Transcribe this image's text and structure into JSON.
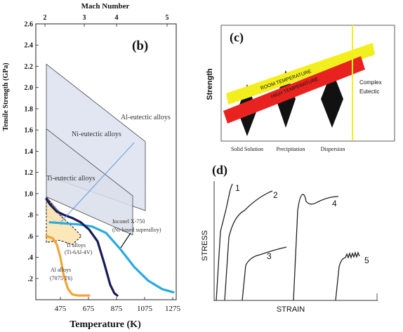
{
  "chart_data": [
    {
      "panel_label": "(b)",
      "type": "line",
      "top_axis_title": "Mach Number",
      "top_ticks": [
        "2",
        "3",
        "4",
        "5"
      ],
      "xlabel": "Temperature (K)",
      "ylabel": "Tensile Strength (GPa)",
      "x_ticks": [
        475,
        675,
        875,
        1075,
        1275
      ],
      "y_ticks": [
        0.2,
        0.4,
        0.6,
        0.8,
        1.0,
        1.2,
        1.4,
        1.6,
        1.8,
        2.0,
        2.2,
        2.4,
        2.6
      ],
      "xlim": [
        300,
        1300
      ],
      "ylim": [
        0,
        2.6
      ],
      "regions": [
        {
          "name": "Al-eutectic alloys",
          "polygon": [
            [
              375,
              2.22
            ],
            [
              1080,
              1.49
            ],
            [
              1080,
              0.84
            ],
            [
              375,
              1.17
            ]
          ]
        },
        {
          "name": "Ni-eutectic alloys",
          "polygon": [
            [
              375,
              1.61
            ],
            [
              990,
              0.98
            ],
            [
              990,
              0.61
            ],
            [
              375,
              0.97
            ]
          ]
        },
        {
          "name": "Ti-eutectic alloys",
          "polygon": [
            [
              375,
              0.97
            ],
            [
              485,
              0.8
            ],
            [
              485,
              0.7
            ],
            [
              375,
              0.8
            ]
          ]
        }
      ],
      "shaded_regions": [
        {
          "name": "Ti alloys (Ti-6Al-4V)",
          "polygon": [
            [
              375,
              0.96
            ],
            [
              395,
              0.93
            ],
            [
              470,
              0.8
            ],
            [
              575,
              0.67
            ],
            [
              625,
              0.6
            ],
            [
              560,
              0.52
            ],
            [
              470,
              0.56
            ],
            [
              375,
              0.54
            ]
          ]
        }
      ],
      "series": [
        {
          "name": "Inconel X-750 (Ni-based superalloy)",
          "color": "#29a9e1",
          "x": [
            400,
            500,
            600,
            700,
            800,
            900,
            1000,
            1100,
            1200,
            1280
          ],
          "y": [
            0.73,
            0.72,
            0.71,
            0.69,
            0.63,
            0.48,
            0.31,
            0.18,
            0.1,
            0.07
          ]
        },
        {
          "name": "Ti alloys (Ti-6Al-4V)",
          "color": "#1a1a5a",
          "x": [
            375,
            400,
            450,
            500,
            560,
            620,
            680,
            740,
            790,
            830,
            860,
            880
          ],
          "y": [
            0.95,
            0.9,
            0.83,
            0.8,
            0.77,
            0.73,
            0.66,
            0.55,
            0.33,
            0.14,
            0.06,
            0.04
          ]
        },
        {
          "name": "Al alloys (7075 T6)",
          "color": "#f0a535",
          "x": [
            375,
            420,
            450,
            475,
            500,
            530,
            560,
            600,
            650,
            680
          ],
          "y": [
            0.6,
            0.58,
            0.52,
            0.4,
            0.22,
            0.1,
            0.05,
            0.04,
            0.04,
            0.04
          ]
        },
        {
          "name": "",
          "color": "#5b9bd5",
          "x": [
            470,
            1000
          ],
          "y": [
            0.72,
            1.48
          ]
        }
      ],
      "labels": {
        "al_eutectic": "Al-eutectic alloys",
        "ni_eutectic": "Ni-eutectic alloys",
        "ti_eutectic": "Ti-eutectic alloys",
        "inconel_1": "Inconel X-750",
        "inconel_2": "(Ni-based superalloy)",
        "ti_1": "Ti alloys",
        "ti_2": "(Ti-6Al-4V)",
        "al_1": "Al alloys",
        "al_2": "(7075 T6)"
      }
    },
    {
      "panel_label": "(c)",
      "type": "diagram",
      "ylabel": "Strength",
      "bands": [
        {
          "name": "ROOM TEMPERATURE",
          "color": "#f3ef1e"
        },
        {
          "name": "HIGH TEMPERATURE",
          "color": "#e8231f"
        }
      ],
      "categories": [
        "Solid Solution",
        "Precipitation",
        "Dispersion"
      ],
      "vertical_line_label": [
        "Complex",
        "Eutectic"
      ],
      "vertical_line_color": "#f3ef1e"
    },
    {
      "panel_label": "(d)",
      "type": "line",
      "xlabel": "STRAIN",
      "ylabel": "STRESS",
      "series_labels": [
        "1",
        "2",
        "3",
        "4",
        "5"
      ]
    }
  ]
}
